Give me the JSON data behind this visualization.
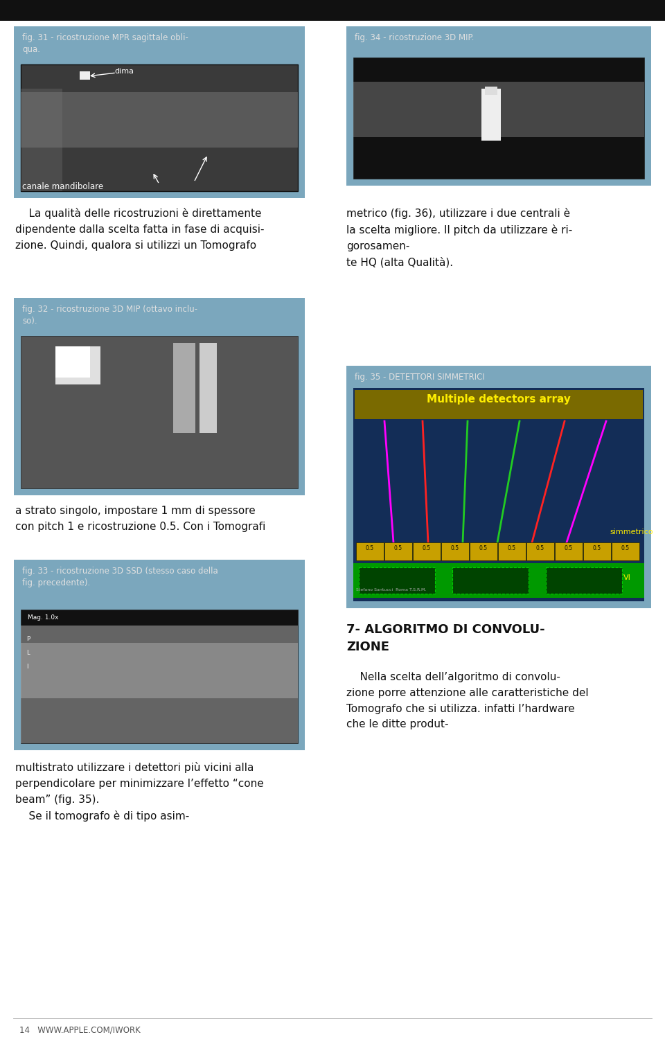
{
  "bg_color": "#ffffff",
  "blue_box_color": "#7ba7bd",
  "top_bar_color": "#111111",
  "text_color": "#111111",
  "white_text": "#e0e0e0",
  "img_dark": "#3a3a3a",
  "img_mid": "#606060",
  "img_light": "#909090",
  "box1_label": "fig. 31 - ricostruzione MPR sagittale obli-\nqua.",
  "box2_label": "fig. 34 - ricostruzione 3D MIP.",
  "box3_label": "fig. 32 - ricostruzione 3D MIP (ottavo inclu-\nso).",
  "box4_label": "fig. 35 - DETETTORI SIMMETRICI",
  "box5_label": "fig. 33 - ricostruzione 3D SSD (stesso caso della\nfig. precedente).",
  "body_text_left_1": "    La qualità delle ricostruzioni è direttamente\ndipendente dalla scelta fatta in fase di acquisi-\nzione. Quindi, qualora si utilizzi un Tomografo",
  "body_text_right_1": "metrico (fig. 36), utilizzare i due centrali è\nla scelta migliore. Il pitch da utilizzare è ri-\ngorosamen-\nte HQ (alta Qualità).",
  "body_text_left_2": "a strato singolo, impostare 1 mm di spessore\ncon pitch 1 e ricostruzione 0.5. Con i Tomografi",
  "body_text_left_3": "multistrato utilizzare i detettori più vicini alla\nperpendicolare per minimizzare l’effetto “cone\nbeam” (fig. 35).\n    Se il tomografo è di tipo asim-",
  "algo_title": "7- ALGORITMO DI CONVOLU-\nZIONE",
  "algo_body": "    Nella scelta dell’algoritmo di convolu-\nzione porre attenzione alle caratteristiche del\nTomografo che si utilizza. infatti l’hardware\nche le ditte produt-",
  "footer_text": "14   WWW.APPLE.COM/IWORK",
  "det_labels": [
    "0.5",
    "0.5",
    "0.5",
    "0.5",
    "0.5",
    "0.5",
    "0.5",
    "0.5",
    "0.5",
    "0.5"
  ],
  "line_colors": [
    "#ff00ff",
    "#ff2222",
    "#22cc22",
    "#22cc22",
    "#ff2222",
    "#ff00ff"
  ],
  "banner_text": "Multiple detectors array",
  "banner_color": "#7a6a00",
  "banner_text_color": "#ffee00",
  "simmetrico_color": "#ffee00",
  "vi_color": "#ffee00",
  "det_color": "#c8a000",
  "green_bar_color": "#009900",
  "credit_text": "Stefano Santucci  Roma T.S.R.M."
}
